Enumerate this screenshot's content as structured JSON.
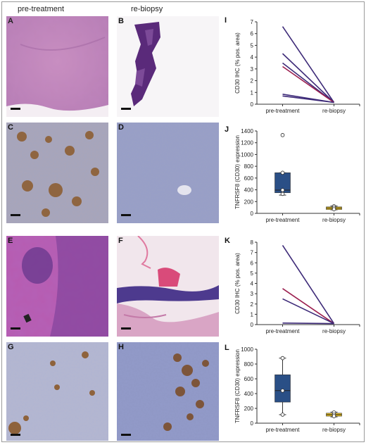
{
  "column_headers": {
    "left": "pre-treatment",
    "right": "re-biopsy"
  },
  "image_panels": [
    {
      "label": "A",
      "stain": "H&E"
    },
    {
      "label": "B",
      "stain": "H&E"
    },
    {
      "label": "C",
      "stain": "CD30 IHC"
    },
    {
      "label": "D",
      "stain": "CD30 IHC"
    },
    {
      "label": "E",
      "stain": "H&E"
    },
    {
      "label": "F",
      "stain": "H&E"
    },
    {
      "label": "G",
      "stain": "CD30 IHC"
    },
    {
      "label": "H",
      "stain": "CD30 IHC"
    }
  ],
  "colors": {
    "he_pink": "#d8a0c8",
    "he_purple": "#5a2a7a",
    "ihc_blue": "#8e97bd",
    "ihc_brown": "#8b5a2b",
    "line_purple": "#3d2a78",
    "line_red": "#9b1f4f",
    "box_blue": "#2a4f86",
    "box_yellow": "#f0c419"
  },
  "chart_data": [
    {
      "label": "I",
      "type": "line",
      "categories": [
        "pre-treatment",
        "re-biopsy"
      ],
      "ylabel": "CD30 IHC (% pos. area)",
      "ylim": [
        0,
        7
      ],
      "yticks": [
        0,
        1,
        2,
        3,
        4,
        5,
        6,
        7
      ],
      "series": [
        {
          "values": [
            6.6,
            0.15
          ],
          "color": "#3d2a78"
        },
        {
          "values": [
            4.3,
            0.15
          ],
          "color": "#3d2a78"
        },
        {
          "values": [
            3.5,
            0.15
          ],
          "color": "#3d2a78"
        },
        {
          "values": [
            3.2,
            0.15
          ],
          "color": "#9b1f4f"
        },
        {
          "values": [
            0.85,
            0.15
          ],
          "color": "#3d2a78"
        },
        {
          "values": [
            0.7,
            0.15
          ],
          "color": "#3d2a78"
        }
      ]
    },
    {
      "label": "J",
      "type": "box",
      "categories": [
        "pre-treatment",
        "re-biopsy"
      ],
      "ylabel": "TNFRSF8 (CD30) expression",
      "ylim": [
        0,
        1400
      ],
      "yticks": [
        0,
        200,
        400,
        600,
        800,
        1000,
        1200,
        1400
      ],
      "boxes": [
        {
          "q1": 350,
          "median": 395,
          "q3": 690,
          "whisker_low": 310,
          "whisker_high": 690,
          "points": [
            1330,
            690,
            395,
            330
          ],
          "color": "#2a4f86"
        },
        {
          "q1": 65,
          "median": 90,
          "q3": 110,
          "whisker_low": 60,
          "whisker_high": 125,
          "points": [
            120,
            95,
            70
          ],
          "color": "#f0c419"
        }
      ]
    },
    {
      "label": "K",
      "type": "line",
      "categories": [
        "pre-treatment",
        "re-biopsy"
      ],
      "ylabel": "CD30 IHC (% pos. area)",
      "ylim": [
        0,
        8
      ],
      "yticks": [
        0,
        1,
        2,
        3,
        4,
        5,
        6,
        7,
        8
      ],
      "series": [
        {
          "values": [
            7.7,
            0.1
          ],
          "color": "#3d2a78"
        },
        {
          "values": [
            3.5,
            0.1
          ],
          "color": "#9b1f4f"
        },
        {
          "values": [
            2.5,
            0.1
          ],
          "color": "#3d2a78"
        },
        {
          "values": [
            0.15,
            0.1
          ],
          "color": "#3d2a78"
        }
      ]
    },
    {
      "label": "L",
      "type": "box",
      "categories": [
        "pre-treatment",
        "re-biopsy"
      ],
      "ylabel": "TNFRSF8 (CD30) expression",
      "ylim": [
        0,
        1000
      ],
      "yticks": [
        0,
        200,
        400,
        600,
        800,
        1000
      ],
      "boxes": [
        {
          "q1": 285,
          "median": 440,
          "q3": 655,
          "whisker_low": 115,
          "whisker_high": 880,
          "points": [
            880,
            440,
            115
          ],
          "color": "#2a4f86"
        },
        {
          "q1": 95,
          "median": 115,
          "q3": 135,
          "whisker_low": 85,
          "whisker_high": 150,
          "points": [
            145,
            115,
            95
          ],
          "color": "#f0c419"
        }
      ]
    }
  ]
}
